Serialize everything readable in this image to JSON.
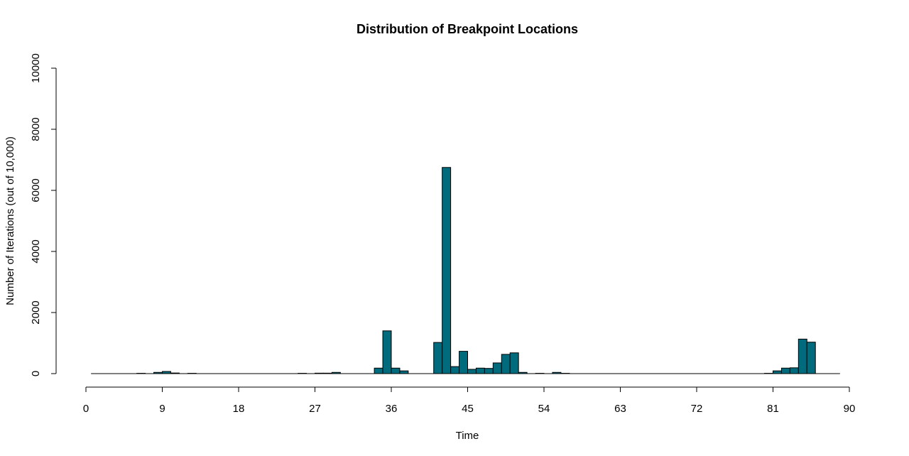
{
  "chart_data": {
    "type": "bar",
    "title": "Distribution of Breakpoint Locations",
    "xlabel": "Time",
    "ylabel": "Number of Iterations (out of 10,000)",
    "xlim": [
      0,
      90
    ],
    "ylim": [
      0,
      10000
    ],
    "x_ticks": [
      0,
      9,
      18,
      27,
      36,
      45,
      54,
      63,
      72,
      81,
      90
    ],
    "y_ticks": [
      0,
      2000,
      4000,
      6000,
      8000,
      10000
    ],
    "bar_color": "#006b7d",
    "grid": false,
    "x": [
      2,
      3,
      4,
      5,
      6,
      7,
      8,
      9,
      10,
      11,
      12,
      13,
      14,
      15,
      16,
      17,
      18,
      19,
      20,
      21,
      22,
      23,
      24,
      25,
      26,
      27,
      28,
      29,
      30,
      31,
      32,
      33,
      34,
      35,
      36,
      37,
      38,
      39,
      40,
      41,
      42,
      43,
      44,
      45,
      46,
      47,
      48,
      49,
      50,
      51,
      52,
      53,
      54,
      55,
      56,
      57,
      58,
      59,
      60,
      61,
      62,
      63,
      64,
      65,
      66,
      67,
      68,
      69,
      70,
      71,
      72,
      73,
      74,
      75,
      76,
      77,
      78,
      79,
      80,
      81,
      82,
      83,
      84,
      85,
      86
    ],
    "values": [
      0,
      0,
      0,
      0,
      0,
      10,
      0,
      40,
      70,
      20,
      0,
      10,
      0,
      0,
      0,
      0,
      0,
      0,
      0,
      0,
      0,
      0,
      0,
      0,
      10,
      0,
      15,
      15,
      40,
      0,
      0,
      0,
      0,
      180,
      1400,
      180,
      90,
      0,
      0,
      0,
      1020,
      6750,
      230,
      730,
      140,
      180,
      170,
      350,
      630,
      680,
      40,
      0,
      10,
      0,
      40,
      10,
      0,
      0,
      0,
      0,
      0,
      0,
      0,
      0,
      0,
      0,
      0,
      0,
      0,
      0,
      0,
      0,
      0,
      0,
      0,
      0,
      0,
      0,
      0,
      10,
      90,
      180,
      190,
      1130,
      1030
    ]
  }
}
